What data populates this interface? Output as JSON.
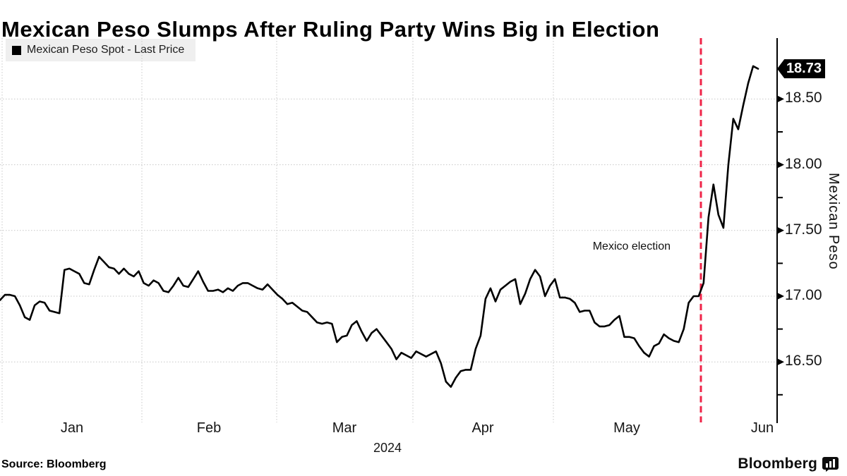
{
  "title": "Mexican Peso Slumps After Ruling Party Wins Big in Election",
  "legend": {
    "label": "Mexican Peso Spot - Last Price"
  },
  "annotation": {
    "label": "Mexico election"
  },
  "last_price_badge": "18.73",
  "y_axis": {
    "title": "Mexican Peso",
    "ticks": [
      "18.50",
      "18.00",
      "17.50",
      "17.00",
      "16.50"
    ]
  },
  "x_axis": {
    "months": [
      "Jan",
      "Feb",
      "Mar",
      "Apr",
      "May",
      "Jun"
    ],
    "year": "2024"
  },
  "source": "Source: Bloomberg",
  "brand": "Bloomberg",
  "colors": {
    "line": "#000000",
    "event_line": "#ef2448",
    "grid": "#c7c7c7",
    "axis": "#000000",
    "badge_bg": "#000000",
    "badge_text": "#ffffff",
    "legend_bg": "#efefef"
  },
  "chart_data": {
    "type": "line",
    "title": "Mexican Peso Slumps After Ruling Party Wins Big in Election",
    "series_name": "Mexican Peso Spot - Last Price",
    "xlabel": "2024",
    "ylabel": "Mexican Peso",
    "ylim": [
      16.09,
      18.97
    ],
    "y_ticks": [
      16.5,
      17.0,
      17.5,
      18.0,
      18.5
    ],
    "x_months": [
      "Jan",
      "Feb",
      "Mar",
      "Apr",
      "May",
      "Jun"
    ],
    "grid": true,
    "legend_position": "top-left",
    "event": {
      "label": "Mexico election",
      "at_point_index": 141,
      "style": "vertical-dashed",
      "color": "#ef2448"
    },
    "last_value": 18.73,
    "values": [
      16.97,
      17.01,
      17.01,
      17.0,
      16.93,
      16.84,
      16.82,
      16.93,
      16.96,
      16.95,
      16.89,
      16.88,
      16.87,
      17.2,
      17.21,
      17.19,
      17.17,
      17.1,
      17.09,
      17.2,
      17.3,
      17.26,
      17.22,
      17.21,
      17.17,
      17.21,
      17.17,
      17.15,
      17.19,
      17.1,
      17.08,
      17.12,
      17.1,
      17.04,
      17.03,
      17.08,
      17.14,
      17.08,
      17.07,
      17.13,
      17.19,
      17.11,
      17.04,
      17.04,
      17.05,
      17.03,
      17.06,
      17.04,
      17.08,
      17.1,
      17.1,
      17.08,
      17.06,
      17.05,
      17.09,
      17.05,
      17.01,
      16.98,
      16.94,
      16.95,
      16.92,
      16.89,
      16.88,
      16.84,
      16.8,
      16.79,
      16.8,
      16.79,
      16.65,
      16.69,
      16.7,
      16.78,
      16.81,
      16.73,
      16.66,
      16.72,
      16.75,
      16.7,
      16.65,
      16.6,
      16.52,
      16.57,
      16.55,
      16.53,
      16.58,
      16.56,
      16.54,
      16.56,
      16.58,
      16.49,
      16.35,
      16.31,
      16.38,
      16.43,
      16.44,
      16.44,
      16.6,
      16.7,
      16.98,
      17.06,
      16.96,
      17.05,
      17.08,
      17.11,
      17.13,
      16.94,
      17.02,
      17.13,
      17.2,
      17.15,
      17.0,
      17.08,
      17.13,
      16.99,
      16.99,
      16.98,
      16.95,
      16.88,
      16.89,
      16.89,
      16.8,
      16.77,
      16.77,
      16.78,
      16.82,
      16.85,
      16.69,
      16.69,
      16.68,
      16.62,
      16.57,
      16.54,
      16.62,
      16.64,
      16.71,
      16.68,
      16.66,
      16.65,
      16.75,
      16.95,
      17.0,
      17.0,
      17.1,
      17.6,
      17.85,
      17.62,
      17.52,
      18.0,
      18.35,
      18.27,
      18.45,
      18.62,
      18.75,
      18.73
    ]
  }
}
